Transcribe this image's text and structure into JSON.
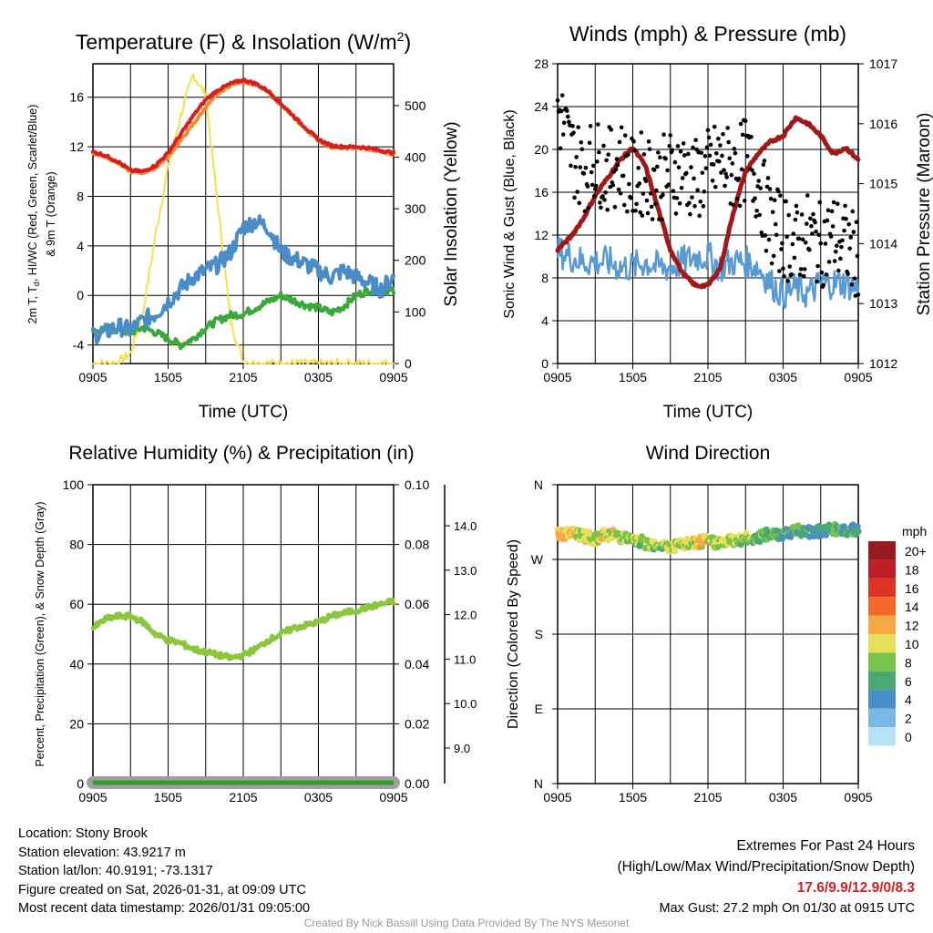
{
  "x_labels": [
    "0905",
    "1505",
    "2105",
    "0305",
    "0905"
  ],
  "chart_data": [
    {
      "type": "line",
      "title": "Temperature (F) & Insolation (W/m2)",
      "xlabel": "Time (UTC)",
      "ylabel": "2m T, Td, HI/WC (Red, Green, Scarlet/Blue) & 9m T (Orange)",
      "ylabel_line1": "2m T, T",
      "ylabel_sub": "d",
      "ylabel_line1b": ", HI/WC (Red, Green, Scarlet/Blue)",
      "ylabel_line2": "& 9m T (Orange)",
      "y2label": "Solar Insolation (Yellow)",
      "ylim": [
        -5.5,
        18.7
      ],
      "y2lim": [
        0,
        581
      ],
      "yticks": [
        -4,
        0,
        4,
        8,
        12,
        16
      ],
      "y2ticks": [
        0,
        100,
        200,
        300,
        400,
        500
      ],
      "series": [
        {
          "name": "2m T",
          "color": "#d42020",
          "values": [
            11.6,
            11.3,
            10.8,
            10.1,
            10.0,
            10.5,
            11.5,
            13.0,
            14.5,
            15.8,
            16.6,
            17.1,
            17.4,
            17.1,
            16.5,
            15.5,
            14.5,
            13.5,
            12.6,
            12.1,
            12.0,
            12.0,
            11.9,
            11.7,
            11.5
          ]
        },
        {
          "name": "9m T",
          "color": "#f08a30",
          "values": [
            11.5,
            11.2,
            10.7,
            10.0,
            9.9,
            10.3,
            11.2,
            12.5,
            13.8,
            15.2,
            16.3,
            17.0,
            17.3,
            17.0,
            16.4,
            15.4,
            14.4,
            13.4,
            12.5,
            12.0,
            11.9,
            11.9,
            11.8,
            11.6,
            11.4
          ]
        },
        {
          "name": "Td",
          "color": "#4a8cc8",
          "values": [
            -3.2,
            -3.0,
            -2.5,
            -2.8,
            -2.0,
            -1.5,
            -0.5,
            0.5,
            1.5,
            2.0,
            2.5,
            3.5,
            5.5,
            6.0,
            5.5,
            3.5,
            3.0,
            2.5,
            2.0,
            1.5,
            2.0,
            1.5,
            1.0,
            0.5,
            1.5
          ]
        },
        {
          "name": "HI/WC",
          "color": "#3aa83a",
          "values": [
            -3.0,
            -2.6,
            -2.8,
            -3.0,
            -2.6,
            -3.0,
            -3.5,
            -4.0,
            -3.5,
            -2.6,
            -2.0,
            -1.6,
            -1.5,
            -1.0,
            -0.5,
            0.0,
            -0.4,
            -0.8,
            -1.0,
            -1.4,
            -0.9,
            0.0,
            0.4,
            0.5,
            0.3
          ]
        },
        {
          "name": "Insolation",
          "axis": "right",
          "color": "#f5e050",
          "values": [
            0,
            0,
            2,
            20,
            100,
            250,
            380,
            480,
            560,
            520,
            300,
            80,
            5,
            0,
            0,
            0,
            0,
            0,
            0,
            0,
            0,
            0,
            0,
            0,
            0
          ]
        }
      ]
    },
    {
      "type": "line",
      "title": "Winds (mph) & Pressure (mb)",
      "xlabel": "Time (UTC)",
      "ylabel": "Sonic Wind & Gust (Blue, Black)",
      "y2label": "Station Pressure (Maroon)",
      "ylim": [
        0,
        28
      ],
      "y2lim": [
        1012,
        1017
      ],
      "yticks": [
        0,
        4,
        8,
        12,
        16,
        20,
        24,
        28
      ],
      "y2ticks": [
        1012,
        1013,
        1014,
        1015,
        1016,
        1017
      ],
      "series": [
        {
          "name": "Sonic Wind",
          "color": "#5a9ad4",
          "values": [
            10.5,
            10,
            9.5,
            9.5,
            9.5,
            9,
            9,
            9.5,
            9,
            9,
            9.5,
            10,
            10,
            9,
            9.5,
            9.5,
            9,
            7.5,
            6.5,
            7,
            6.5,
            7.5,
            7.5,
            7.5,
            7
          ]
        },
        {
          "name": "Gust",
          "color": "#000000",
          "values": [
            24,
            20,
            18,
            19,
            18,
            19,
            17,
            18,
            17,
            18,
            18,
            17,
            18,
            19,
            18,
            19,
            17,
            13,
            12,
            11,
            12,
            11,
            12,
            11,
            10
          ]
        },
        {
          "name": "Pressure",
          "axis": "right",
          "color": "#a01818",
          "values": [
            1013.9,
            1014.1,
            1014.4,
            1014.8,
            1015.1,
            1015.4,
            1015.6,
            1015.3,
            1014.6,
            1013.9,
            1013.5,
            1013.3,
            1013.3,
            1013.6,
            1014.5,
            1015.2,
            1015.5,
            1015.7,
            1015.8,
            1016.1,
            1016.0,
            1015.8,
            1015.5,
            1015.6,
            1015.4
          ]
        }
      ]
    },
    {
      "type": "line",
      "title": "Relative Humidity (%) & Precipitation (in)",
      "ylabel": "Percent, Precipitation (Green), & Snow Depth (Gray)",
      "ylim": [
        0,
        100
      ],
      "y2lim": [
        0,
        0.1
      ],
      "yticks": [
        0,
        20,
        40,
        60,
        80,
        100
      ],
      "y2ticks": [
        "0.00",
        "0.02",
        "0.04",
        "0.06",
        "0.08",
        "0.10"
      ],
      "y3ticks": [
        "9.0",
        "10.0",
        "11.0",
        "12.0",
        "13.0",
        "14.0"
      ],
      "series": [
        {
          "name": "RH",
          "color": "#8cc63e",
          "values": [
            52,
            55,
            56,
            56,
            54,
            50,
            48,
            47,
            45,
            44,
            43,
            42,
            43,
            45,
            48,
            50,
            52,
            53,
            54,
            56,
            57,
            58,
            59,
            60,
            61
          ]
        },
        {
          "name": "Precipitation",
          "color": "#2e9e2e",
          "values": [
            0,
            0
          ]
        },
        {
          "name": "Snow Depth",
          "color": "#a0a0a0",
          "values": [
            0,
            0
          ]
        }
      ]
    },
    {
      "type": "scatter",
      "title": "Wind Direction",
      "ylabel": "Direction (Colored By Speed)",
      "yticks": [
        "N",
        "E",
        "S",
        "W",
        "N"
      ],
      "direction_hourly": [
        300,
        302,
        298,
        295,
        300,
        298,
        292,
        290,
        288,
        285,
        287,
        290,
        292,
        290,
        293,
        295,
        297,
        300,
        302,
        305,
        303,
        305,
        306,
        305,
        305
      ],
      "speed_hourly": [
        11,
        11,
        10,
        9,
        10,
        9,
        8,
        9,
        8,
        10,
        9,
        10,
        10,
        9,
        9,
        8,
        8,
        7,
        6,
        6,
        6,
        5,
        6,
        6,
        6
      ],
      "legend": {
        "title": "mph",
        "labels": [
          "20+",
          "18",
          "16",
          "14",
          "12",
          "10",
          "8",
          "6",
          "4",
          "2",
          "0"
        ],
        "colors": [
          "#971b1e",
          "#bc1e26",
          "#dd3327",
          "#f26a2a",
          "#f7a845",
          "#e8e05a",
          "#7ac24a",
          "#4aa872",
          "#4a8ec8",
          "#7ab8e4",
          "#b8e2f6"
        ]
      }
    }
  ],
  "info": {
    "location": "Location: Stony Brook",
    "elevation": "Station elevation: 43.9217 m",
    "latlon": "Station lat/lon: 40.9191; -73.1317",
    "created": "Figure created on Sat, 2026-01-31, at 09:09 UTC",
    "recent": "Most recent data timestamp: 2026/01/31 09:05:00"
  },
  "extremes": {
    "title": "Extremes For Past 24 Hours",
    "subtitle": "(High/Low/Max Wind/Precipitation/Snow Depth)",
    "values": "17.6/9.9/12.9/0/8.3",
    "values_color": "#d42020",
    "gust": "Max Gust: 27.2 mph On 01/30 at 0915 UTC"
  },
  "credit": "Created By Nick Bassill Using Data Provided By The NYS Mesonet"
}
